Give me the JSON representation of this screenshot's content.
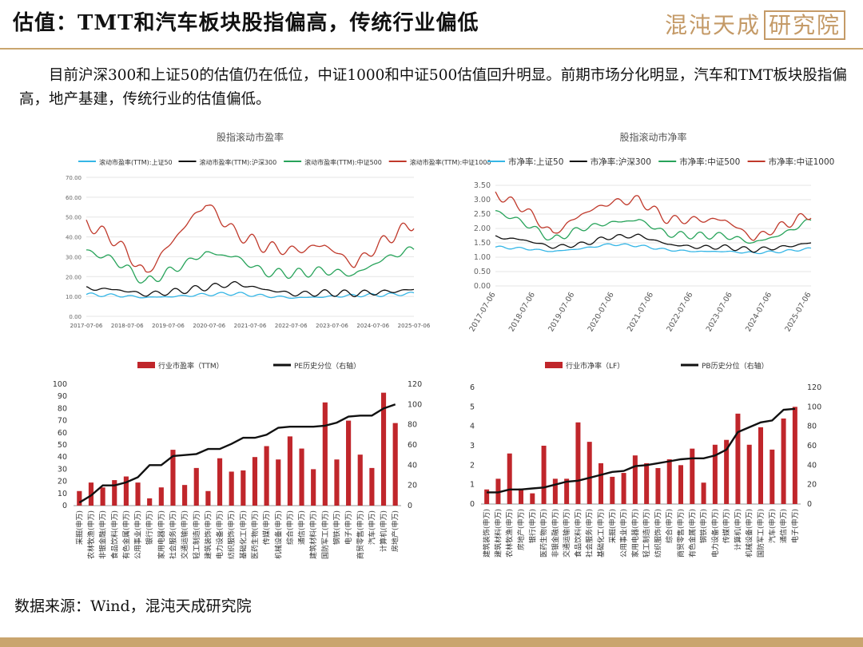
{
  "header": {
    "title": "估值：TMT和汽车板块股指偏高，传统行业偏低",
    "logo_text": "混沌天成",
    "logo_box": "研究院"
  },
  "intro": "目前沪深300和上证50的估值仍在低位，中证1000和中证500估值回升明显。前期市场分化明显，汽车和TMT板块股指偏高，地产基建，传统行业的估值偏低。",
  "source": "数据来源：Wind，混沌天成研究院",
  "colors": {
    "red": "#c0392b",
    "black": "#111111",
    "green": "#27a35a",
    "blue": "#35b6e6",
    "barRed": "#c0262b",
    "gold": "#c9a56e"
  },
  "chart_data": [
    {
      "id": "pe_rolling",
      "type": "line",
      "title": "股指滚动市盈率",
      "x_ticks": [
        "2017-07-06",
        "2018-07-06",
        "2019-07-06",
        "2020-07-06",
        "2021-07-06",
        "2022-07-06",
        "2023-07-06",
        "2024-07-06",
        "2025-07-06"
      ],
      "ylim": [
        0,
        70
      ],
      "y_ticks": [
        "0.00",
        "10.00",
        "20.00",
        "30.00",
        "40.00",
        "50.00",
        "60.00",
        "70.00"
      ],
      "series": [
        {
          "name": "滚动市盈率(TTM):上证50",
          "color": "#35b6e6",
          "values": [
            11,
            10.5,
            9.5,
            10,
            11,
            11.5,
            10.2,
            9.3,
            9.8,
            10.5,
            10.8,
            11.5
          ]
        },
        {
          "name": "滚动市盈率(TTM):沪深300",
          "color": "#111111",
          "values": [
            14,
            13.5,
            11,
            12.5,
            14.5,
            16.5,
            13.5,
            11.2,
            11.8,
            11.5,
            12.2,
            13.5
          ]
        },
        {
          "name": "滚动市盈率(TTM):中证500",
          "color": "#27a35a",
          "values": [
            33,
            28,
            17,
            24,
            32,
            30,
            22,
            21.5,
            23,
            21,
            29,
            34
          ]
        },
        {
          "name": "滚动市盈率(TTM):中证1000",
          "color": "#c0392b",
          "values": [
            47,
            38,
            21,
            40,
            57,
            42,
            35,
            33,
            36,
            26,
            38,
            47
          ]
        }
      ]
    },
    {
      "id": "pb_rolling",
      "type": "line",
      "title": "股指滚动市净率",
      "x_ticks": [
        "2017-07-06",
        "2018-07-06",
        "2019-07-06",
        "2020-07-06",
        "2021-07-06",
        "2022-07-06",
        "2023-07-06",
        "2024-07-06",
        "2025-07-06"
      ],
      "ylim": [
        0,
        3.5
      ],
      "y_ticks": [
        "0.00",
        "0.50",
        "1.00",
        "1.50",
        "2.00",
        "2.50",
        "3.00",
        "3.50"
      ],
      "series": [
        {
          "name": "市净率:上证50",
          "color": "#35b6e6",
          "values": [
            1.35,
            1.3,
            1.2,
            1.3,
            1.45,
            1.4,
            1.25,
            1.2,
            1.2,
            1.15,
            1.2,
            1.3
          ]
        },
        {
          "name": "市净率:沪深300",
          "color": "#111111",
          "values": [
            1.7,
            1.6,
            1.35,
            1.45,
            1.7,
            1.75,
            1.45,
            1.35,
            1.35,
            1.25,
            1.35,
            1.5
          ]
        },
        {
          "name": "市净率:中证500",
          "color": "#27a35a",
          "values": [
            2.6,
            2.2,
            1.6,
            2.0,
            2.2,
            2.3,
            1.8,
            1.75,
            1.75,
            1.5,
            1.8,
            2.3
          ]
        },
        {
          "name": "市净率:中证1000",
          "color": "#c0392b",
          "values": [
            3.2,
            2.7,
            1.8,
            2.5,
            2.9,
            3.0,
            2.3,
            2.3,
            2.3,
            1.65,
            2.1,
            2.5
          ]
        }
      ]
    },
    {
      "id": "industry_pe",
      "type": "bar",
      "legend": [
        "行业市盈率（TTM）",
        "PE历史分位（右轴）"
      ],
      "ylim": [
        0,
        100
      ],
      "y_ticks": [
        0,
        10,
        20,
        30,
        40,
        50,
        60,
        70,
        80,
        90,
        100
      ],
      "y2lim": [
        0,
        120
      ],
      "y2_ticks": [
        0,
        20,
        40,
        60,
        80,
        100,
        120
      ],
      "categories": [
        "采掘(申万)",
        "农林牧渔(申万)",
        "非银金融(申万)",
        "食品饮料(申万)",
        "有色金属(申万)",
        "公用事业(申万)",
        "银行(申万)",
        "家用电器(申万)",
        "社会服务(申万)",
        "交通运输(申万)",
        "轻工制造(申万)",
        "建筑装饰(申万)",
        "电力设备(申万)",
        "纺织服饰(申万)",
        "基础化工(申万)",
        "医药生物(申万)",
        "传媒(申万)",
        "机械设备(申万)",
        "综合(申万)",
        "通信(申万)",
        "建筑材料(申万)",
        "国防军工(申万)",
        "钢铁(申万)",
        "电子(申万)",
        "商贸零售(申万)",
        "汽车(申万)",
        "计算机(申万)",
        "房地产(申万)"
      ],
      "values": [
        12,
        19,
        15,
        21,
        24,
        19,
        6,
        15,
        46,
        17,
        31,
        12,
        39,
        28,
        29,
        40,
        49,
        38,
        57,
        47,
        30,
        85,
        38,
        70,
        42,
        31,
        93,
        68
      ],
      "percentile": [
        3,
        10,
        20,
        20,
        23,
        28,
        40,
        40,
        49,
        50,
        51,
        56,
        56,
        61,
        67,
        67,
        70,
        77,
        78,
        78,
        78,
        79,
        82,
        88,
        89,
        89,
        96,
        100
      ]
    },
    {
      "id": "industry_pb",
      "type": "bar",
      "legend": [
        "行业市净率（LF）",
        "PB历史分位（右轴）"
      ],
      "ylim": [
        0,
        6
      ],
      "y_ticks": [
        0,
        1,
        2,
        3,
        4,
        5,
        6
      ],
      "y2lim": [
        0,
        120
      ],
      "y2_ticks": [
        0,
        20,
        40,
        60,
        80,
        100,
        120
      ],
      "categories": [
        "建筑装饰(申万)",
        "建筑材料(申万)",
        "农林牧渔(申万)",
        "房地产(申万)",
        "银行(申万)",
        "医药生物(申万)",
        "非银金融(申万)",
        "交通运输(申万)",
        "食品饮料(申万)",
        "社会服务(申万)",
        "基础化工(申万)",
        "采掘(申万)",
        "公用事业(申万)",
        "家用电器(申万)",
        "轻工制造(申万)",
        "纺织服饰(申万)",
        "综合(申万)",
        "商贸零售(申万)",
        "有色金属(申万)",
        "钢铁(申万)",
        "电力设备(申万)",
        "传媒(申万)",
        "计算机(申万)",
        "机械设备(申万)",
        "国防军工(申万)",
        "汽车(申万)",
        "通信(申万)",
        "电子(申万)"
      ],
      "values": [
        0.75,
        1.3,
        2.6,
        0.8,
        0.55,
        3.0,
        1.3,
        1.3,
        4.2,
        3.2,
        2.1,
        1.4,
        1.6,
        2.5,
        2.1,
        1.85,
        2.3,
        2.0,
        2.85,
        1.1,
        3.05,
        3.3,
        4.65,
        3.05,
        3.95,
        2.8,
        4.4,
        5.0
      ],
      "percentile": [
        12,
        12,
        15,
        15,
        16,
        17,
        20,
        23,
        24,
        27,
        30,
        33,
        34,
        39,
        40,
        42,
        44,
        46,
        47,
        47,
        50,
        56,
        74,
        79,
        84,
        86,
        97,
        98
      ]
    }
  ]
}
